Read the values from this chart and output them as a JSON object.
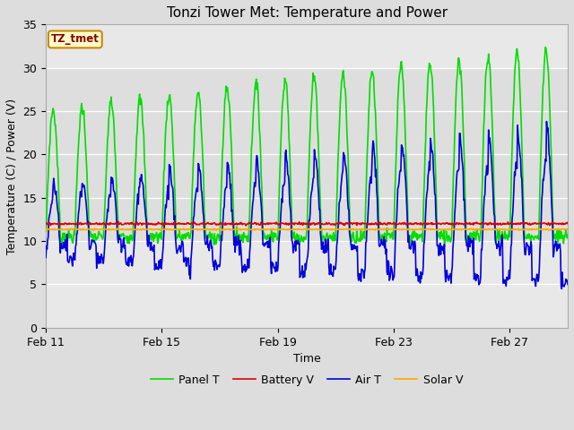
{
  "title": "Tonzi Tower Met: Temperature and Power",
  "xlabel": "Time",
  "ylabel": "Temperature (C) / Power (V)",
  "ylim": [
    0,
    35
  ],
  "xtick_labels": [
    "Feb 11",
    "Feb 15",
    "Feb 19",
    "Feb 23",
    "Feb 27"
  ],
  "xtick_positions": [
    0,
    4,
    8,
    12,
    16
  ],
  "ytick_values": [
    0,
    5,
    10,
    15,
    20,
    25,
    30,
    35
  ],
  "legend_label": "TZ_tmet",
  "n_days": 18,
  "series": {
    "Panel T": {
      "color": "#00dd00",
      "linewidth": 1.2
    },
    "Battery V": {
      "color": "#dd0000",
      "linewidth": 1.2
    },
    "Air T": {
      "color": "#0000dd",
      "linewidth": 1.2
    },
    "Solar V": {
      "color": "#ffaa00",
      "linewidth": 1.2
    }
  },
  "figure_bg": "#dddddd",
  "plot_bg": "#e8e8e8",
  "title_fontsize": 11,
  "axis_label_fontsize": 9,
  "tick_fontsize": 9,
  "legend_fontsize": 9,
  "shaded_ymin": 10,
  "shaded_ymax": 30
}
